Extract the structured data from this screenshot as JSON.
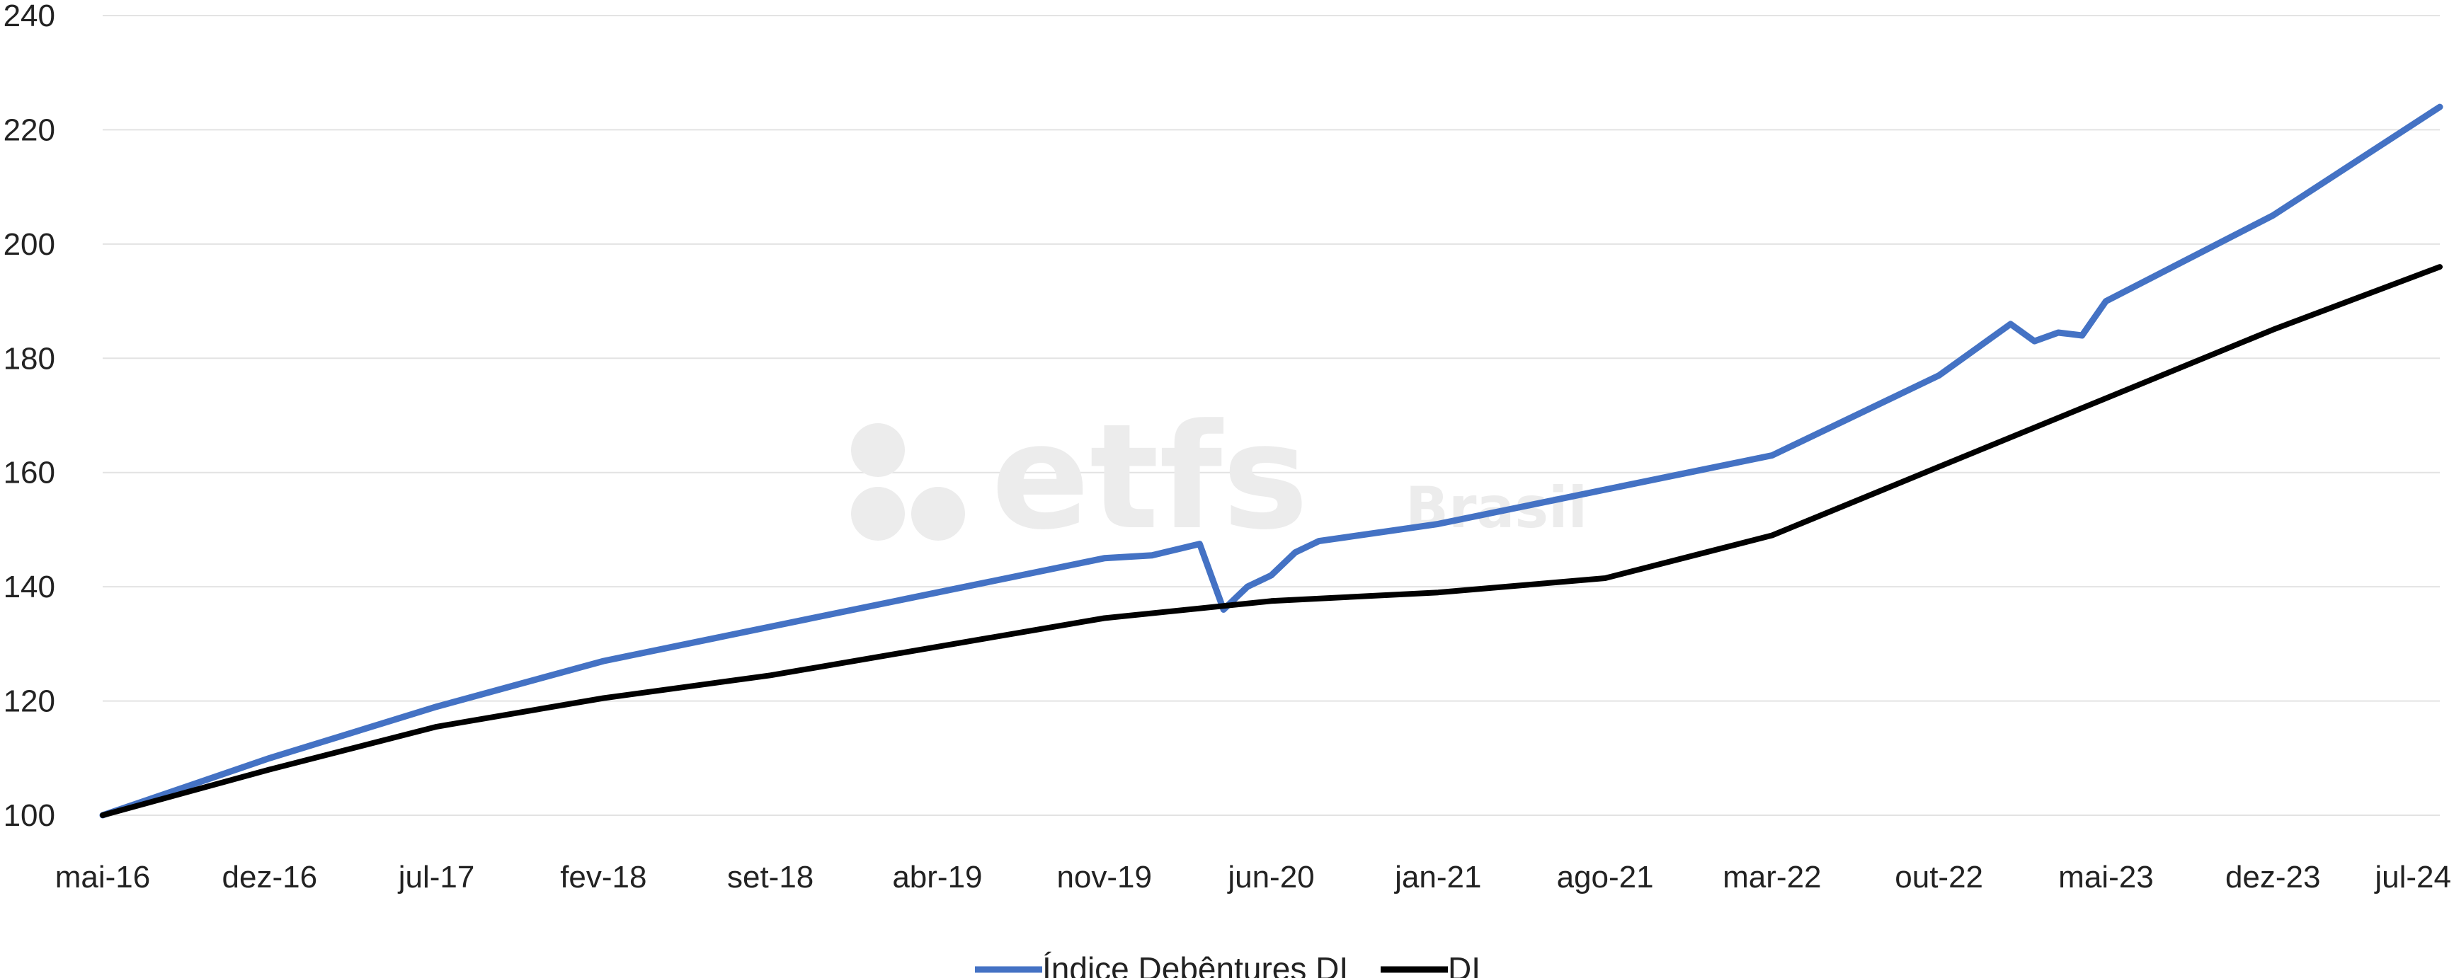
{
  "chart_data": {
    "type": "line",
    "title": "",
    "xlabel": "",
    "ylabel": "",
    "ylim": [
      100,
      240
    ],
    "yticks": [
      100,
      120,
      140,
      160,
      180,
      200,
      220,
      240
    ],
    "xlim": [
      "mai-16",
      "jul-24"
    ],
    "categories": [
      "mai-16",
      "dez-16",
      "jul-17",
      "fev-18",
      "set-18",
      "abr-19",
      "nov-19",
      "jun-20",
      "jan-21",
      "ago-21",
      "mar-22",
      "out-22",
      "mai-23",
      "dez-23",
      "jul-24"
    ],
    "grid": true,
    "legend_position": "bottom",
    "watermark": {
      "main": "etfs",
      "sub": "Brasil"
    },
    "series": [
      {
        "name": "Índice Debêntures DI",
        "color": "#4472c4",
        "x": [
          "mai-16",
          "dez-16",
          "jul-17",
          "fev-18",
          "set-18",
          "abr-19",
          "nov-19",
          "jan-20",
          "mar-20",
          "abr-20",
          "mai-20",
          "jun-20",
          "jul-20",
          "ago-20",
          "jan-21",
          "ago-21",
          "mar-22",
          "out-22",
          "jan-23",
          "fev-23",
          "mar-23",
          "abr-23",
          "mai-23",
          "dez-23",
          "jul-24"
        ],
        "values": [
          100,
          110,
          119,
          127,
          133,
          139,
          145,
          145.5,
          147.5,
          136,
          140,
          142,
          146,
          148,
          151,
          157,
          163,
          177,
          186,
          183,
          184.5,
          184,
          190,
          205,
          224
        ]
      },
      {
        "name": "DI",
        "color": "#000000",
        "x": [
          "mai-16",
          "dez-16",
          "jul-17",
          "fev-18",
          "set-18",
          "abr-19",
          "nov-19",
          "jun-20",
          "jan-21",
          "ago-21",
          "mar-22",
          "out-22",
          "mai-23",
          "dez-23",
          "jul-24"
        ],
        "values": [
          100,
          108,
          115.5,
          120.5,
          124.5,
          129.5,
          134.5,
          137.5,
          139,
          141.5,
          149,
          161,
          173,
          185,
          196
        ]
      }
    ]
  }
}
